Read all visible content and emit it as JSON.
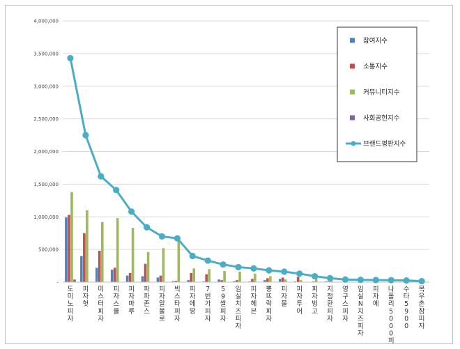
{
  "chart_data": {
    "type": "bar",
    "title": "",
    "xlabel": "",
    "ylabel": "",
    "ylim": [
      0,
      4000000
    ],
    "yticks": [
      0,
      500000,
      1000000,
      1500000,
      2000000,
      2500000,
      3000000,
      3500000,
      4000000
    ],
    "ytick_labels": [
      "-",
      "500,000",
      "1,000,000",
      "1,500,000",
      "2,000,000",
      "2,500,000",
      "3,000,000",
      "3,500,000",
      "4,000,000"
    ],
    "grid": true,
    "legend_position": "top-right",
    "categories": [
      "도미노피자",
      "피자헛",
      "미스터피자",
      "피자스쿨",
      "피자마루",
      "파파존스",
      "피자알볼로",
      "빅스타피자",
      "피자에땅",
      "7번가피자",
      "59쌀피자",
      "임실치즈피자",
      "피자헤븐",
      "뽕뜨락피자",
      "피자몰",
      "피자투어",
      "피자빙고",
      "지정환피자",
      "영구스피자",
      "임실N치즈피자",
      "피자에",
      "나폴리5000피자",
      "수타5900",
      "목우촌참피자"
    ],
    "series": [
      {
        "name": "참여지수",
        "type": "bar",
        "color": "#4f81bd",
        "values": [
          990000,
          400000,
          220000,
          190000,
          100000,
          90000,
          70000,
          15000,
          30000,
          10000,
          40000,
          15000,
          10000,
          30000,
          50000,
          10000,
          5000,
          10000,
          5000,
          3000,
          3000,
          3000,
          2000,
          2000
        ]
      },
      {
        "name": "소통지수",
        "type": "bar",
        "color": "#c0504d",
        "values": [
          1030000,
          750000,
          480000,
          220000,
          140000,
          280000,
          100000,
          20000,
          140000,
          120000,
          30000,
          30000,
          50000,
          60000,
          70000,
          80000,
          10000,
          10000,
          5000,
          5000,
          5000,
          3000,
          3000,
          3000
        ]
      },
      {
        "name": "커뮤니티지수",
        "type": "bar",
        "color": "#9bbb59",
        "values": [
          1380000,
          1100000,
          920000,
          980000,
          830000,
          460000,
          520000,
          630000,
          210000,
          200000,
          170000,
          160000,
          130000,
          90000,
          40000,
          30000,
          70000,
          40000,
          25000,
          25000,
          20000,
          20000,
          15000,
          10000
        ]
      },
      {
        "name": "사회공헌지수",
        "type": "bar",
        "color": "#8064a2",
        "values": [
          40000,
          5000,
          5000,
          3000,
          2000,
          2000,
          2000,
          1000,
          1000,
          1000,
          1000,
          1000,
          1000,
          1000,
          1000,
          1000,
          1000,
          1000,
          1000,
          1000,
          1000,
          1000,
          1000,
          1000
        ]
      },
      {
        "name": "브랜드평판지수",
        "type": "line",
        "color": "#4bacc6",
        "values": [
          3430000,
          2250000,
          1620000,
          1410000,
          1080000,
          840000,
          700000,
          670000,
          400000,
          330000,
          270000,
          230000,
          210000,
          180000,
          160000,
          130000,
          90000,
          60000,
          40000,
          35000,
          32000,
          30000,
          25000,
          15000
        ]
      }
    ]
  }
}
